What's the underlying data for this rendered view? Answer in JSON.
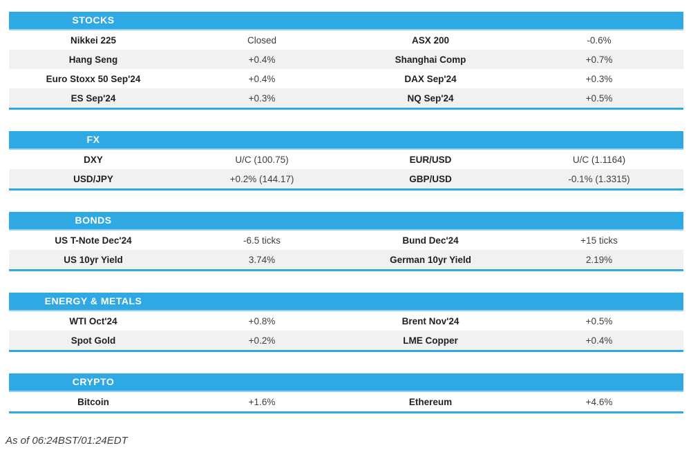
{
  "colors": {
    "accent_blue": "#2fa9e4",
    "accent_blue_light": "#8ed1f4",
    "row_shade": "#f1f1f2",
    "name_text": "#1e1f23",
    "value_text": "#3d3d3d",
    "footer_text": "#3a4049"
  },
  "sections": [
    {
      "title": "STOCKS",
      "rows": [
        {
          "cells": [
            "Nikkei 225",
            "Closed",
            "ASX 200",
            "-0.6%"
          ]
        },
        {
          "cells": [
            "Hang Seng",
            "+0.4%",
            "Shanghai Comp",
            "+0.7%"
          ]
        },
        {
          "cells": [
            "Euro Stoxx 50 Sep'24",
            "+0.4%",
            "DAX Sep'24",
            "+0.3%"
          ]
        },
        {
          "cells": [
            "ES Sep'24",
            "+0.3%",
            "NQ Sep'24",
            "+0.5%"
          ]
        }
      ]
    },
    {
      "title": "FX",
      "rows": [
        {
          "cells": [
            "DXY",
            "U/C (100.75)",
            "EUR/USD",
            "U/C (1.1164)"
          ]
        },
        {
          "cells": [
            "USD/JPY",
            "+0.2% (144.17)",
            "GBP/USD",
            "-0.1% (1.3315)"
          ]
        }
      ]
    },
    {
      "title": "BONDS",
      "rows": [
        {
          "cells": [
            "US T-Note Dec'24",
            "-6.5 ticks",
            "Bund Dec'24",
            "+15 ticks"
          ]
        },
        {
          "cells": [
            "US 10yr Yield",
            "3.74%",
            "German 10yr Yield",
            "2.19%"
          ]
        }
      ]
    },
    {
      "title": "ENERGY & METALS",
      "rows": [
        {
          "cells": [
            "WTI Oct'24",
            "+0.8%",
            "Brent Nov'24",
            "+0.5%"
          ]
        },
        {
          "cells": [
            "Spot Gold",
            "+0.2%",
            "LME Copper",
            "+0.4%"
          ]
        }
      ]
    },
    {
      "title": "CRYPTO",
      "rows": [
        {
          "cells": [
            "Bitcoin",
            "+1.6%",
            "Ethereum",
            "+4.6%"
          ]
        }
      ]
    }
  ],
  "footer": {
    "as_of": "As of 06:24BST/01:24EDT"
  }
}
